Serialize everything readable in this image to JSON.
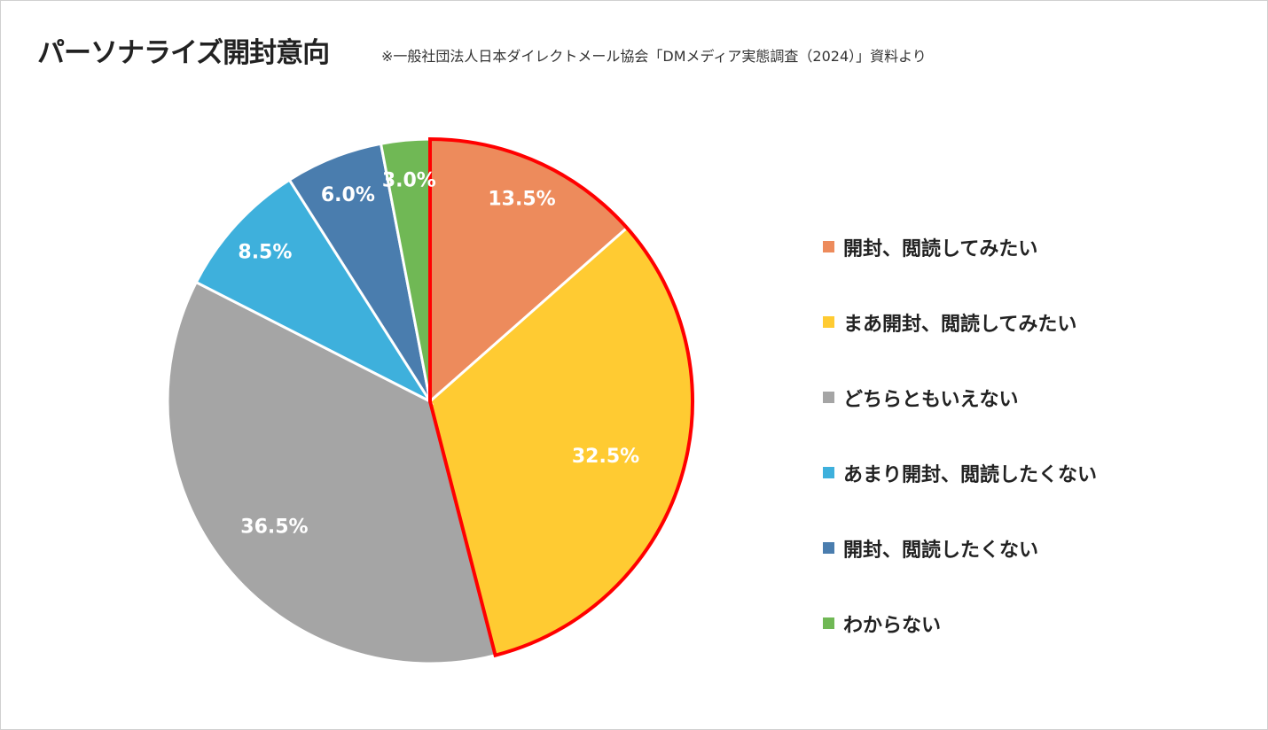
{
  "title": "パーソナライズ開封意向",
  "source": "※一般社団法人日本ダイレクトメール協会「DMメディア実態調査（2024）」資料より",
  "chart_data": {
    "type": "pie",
    "categories": [
      "開封、閲読してみたい",
      "まあ開封、閲読してみたい",
      "どちらともいえない",
      "あまり開封、閲読したくない",
      "開封、閲読したくない",
      "わからない"
    ],
    "values": [
      13.5,
      32.5,
      36.5,
      8.5,
      6.0,
      3.0
    ],
    "data_labels": [
      "13.5%",
      "32.5%",
      "36.5%",
      "8.5%",
      "6.0%",
      "3.0%"
    ],
    "colors": [
      "#ED8B5C",
      "#FFCB32",
      "#A5A5A5",
      "#3EB0DC",
      "#4A7DAE",
      "#70B855"
    ],
    "highlight": {
      "slices": [
        0,
        1
      ],
      "outline_color": "#FF0000"
    },
    "legend_position": "right"
  }
}
